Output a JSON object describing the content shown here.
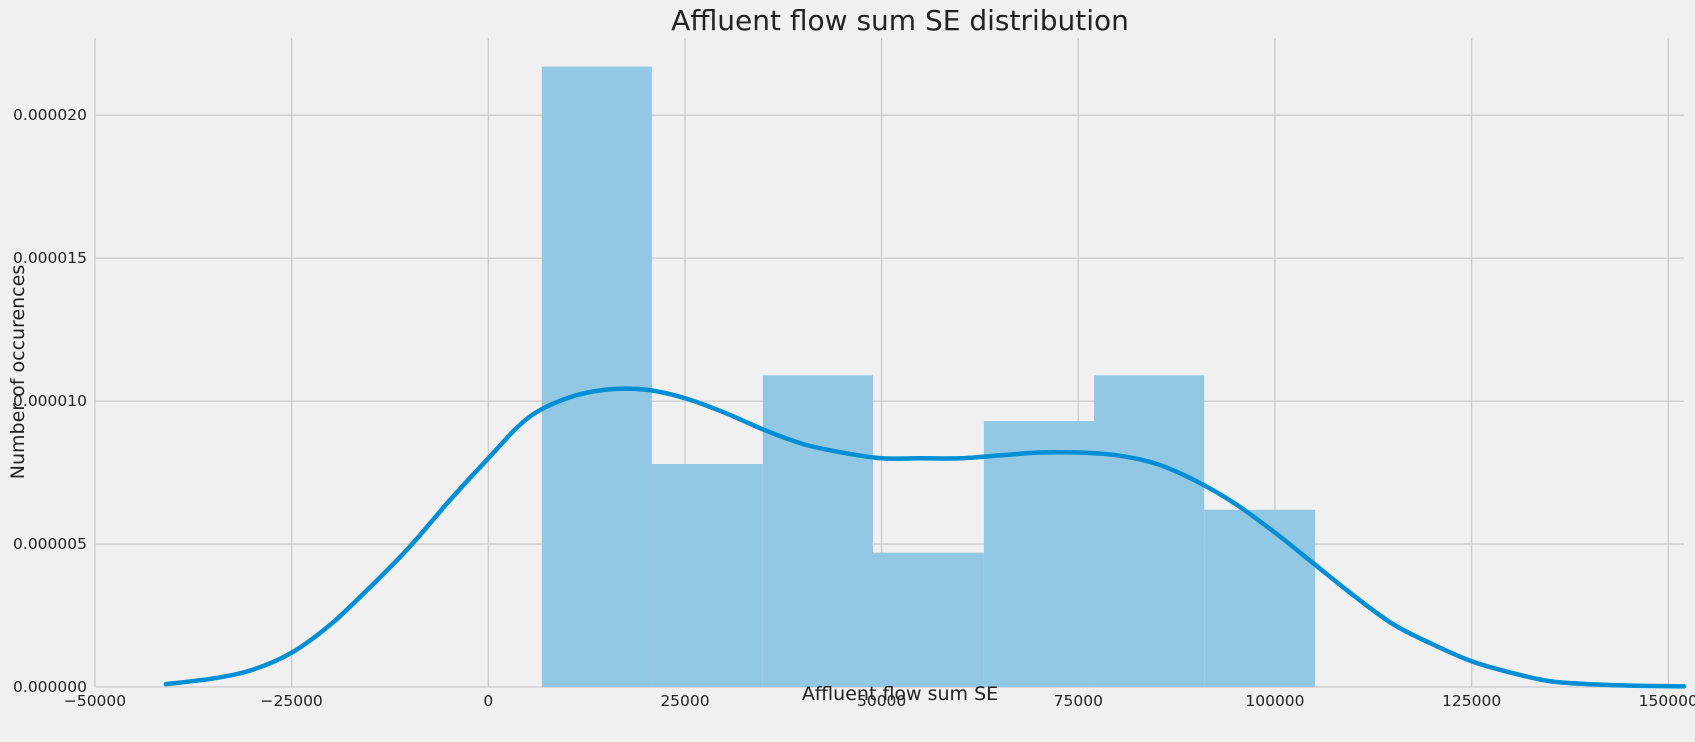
{
  "chart_data": {
    "type": "bar",
    "title": "Affluent flow sum SE distribution",
    "xlabel": "Affluent flow sum SE",
    "ylabel": "Number of occurences",
    "xlim": [
      -50000,
      152000
    ],
    "ylim": [
      0,
      2.27e-05
    ],
    "x_ticks": [
      -50000,
      -25000,
      0,
      25000,
      50000,
      75000,
      100000,
      125000,
      150000
    ],
    "x_tick_labels": [
      "−50000",
      "−25000",
      "0",
      "25000",
      "50000",
      "75000",
      "100000",
      "125000",
      "150000"
    ],
    "y_ticks": [
      0,
      5e-06,
      1e-05,
      1.5e-05,
      2e-05
    ],
    "y_tick_labels": [
      "0.000000",
      "0.000005",
      "0.000010",
      "0.000015",
      "0.000020"
    ],
    "grid": true,
    "histogram": {
      "bin_edges": [
        6800,
        20800,
        34900,
        48900,
        63000,
        77000,
        91000,
        105100
      ],
      "densities": [
        2.17e-05,
        7.8e-06,
        1.09e-05,
        4.7e-06,
        9.3e-06,
        1.09e-05,
        6.2e-06
      ],
      "color": "#93c8e5"
    },
    "kde": {
      "color": "#008fd5",
      "x": [
        -41000,
        -35000,
        -30000,
        -25000,
        -20000,
        -15000,
        -10000,
        -5000,
        0,
        5000,
        10000,
        15000,
        20000,
        25000,
        30000,
        35000,
        40000,
        45000,
        50000,
        55000,
        60000,
        65000,
        70000,
        75000,
        80000,
        85000,
        90000,
        95000,
        100000,
        105000,
        110000,
        115000,
        120000,
        125000,
        130000,
        135000,
        140000,
        145000,
        152000
      ],
      "y": [
        1e-07,
        3e-07,
        6e-07,
        1.2e-06,
        2.2e-06,
        3.5e-06,
        4.9e-06,
        6.5e-06,
        8e-06,
        9.4e-06,
        1.01e-05,
        1.04e-05,
        1.04e-05,
        1.01e-05,
        9.6e-06,
        9e-06,
        8.5e-06,
        8.2e-06,
        8e-06,
        8e-06,
        8e-06,
        8.1e-06,
        8.2e-06,
        8.2e-06,
        8.1e-06,
        7.8e-06,
        7.2e-06,
        6.4e-06,
        5.4e-06,
        4.3e-06,
        3.2e-06,
        2.2e-06,
        1.5e-06,
        9e-07,
        5e-07,
        2e-07,
        1e-07,
        5e-08,
        2e-08
      ]
    }
  }
}
